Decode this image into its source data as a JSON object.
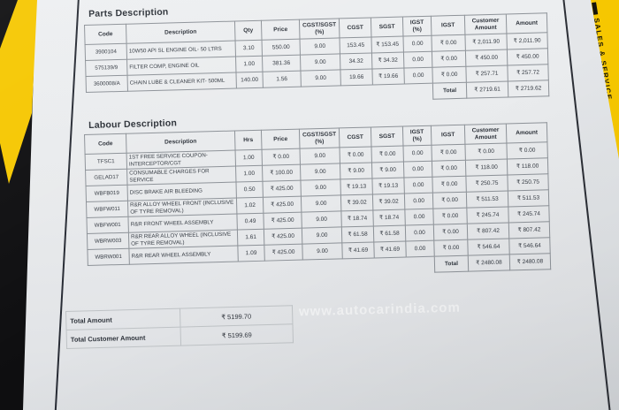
{
  "colors": {
    "strip_yellow": "#f6c700",
    "paper": "#e8eaec",
    "edge_line": "#2b2e35",
    "table_border": "#8d9298"
  },
  "side_strip": {
    "text": "SALES & SERVICE"
  },
  "overlay": {
    "watermark": "www.autocarindia.com"
  },
  "document": {
    "parts": {
      "title": "Parts Description",
      "columns": [
        "Code",
        "Description",
        "Qty",
        "Price",
        "CGST/SGST (%)",
        "CGST",
        "SGST",
        "IGST (%)",
        "IGST",
        "Customer Amount",
        "Amount"
      ],
      "rows": [
        [
          "3900104",
          "10W50 API SL ENGINE OIL- 50 LTRS",
          "3.10",
          "550.00",
          "9.00",
          "153.45",
          "₹ 153.45",
          "0.00",
          "₹ 0.00",
          "₹ 2,011.90",
          "₹ 2,011.90"
        ],
        [
          "575139/9",
          "FILTER COMP, ENGINE OIL",
          "1.00",
          "381.36",
          "9.00",
          "34.32",
          "₹ 34.32",
          "0.00",
          "₹ 0.00",
          "₹ 450.00",
          "₹ 450.00"
        ],
        [
          "3600008/A",
          "CHAIN LUBE & CLEANER KIT- 500ML",
          "140.00",
          "1.56",
          "9.00",
          "19.66",
          "₹ 19.66",
          "0.00",
          "₹ 0.00",
          "₹ 257.71",
          "₹ 257.72"
        ]
      ],
      "total_label": "Total",
      "total_customer_amount": "₹ 2719.61",
      "total_amount": "₹ 2719.62"
    },
    "labour": {
      "title": "Labour Description",
      "columns": [
        "Code",
        "Description",
        "Hrs",
        "Price",
        "CGST/SGST (%)",
        "CGST",
        "SGST",
        "IGST (%)",
        "IGST",
        "Customer Amount",
        "Amount"
      ],
      "rows": [
        [
          "TFSC1",
          "1ST FREE SERVICE COUPON-INTERCEPTOR/CGT",
          "1.00",
          "₹ 0.00",
          "9.00",
          "₹ 0.00",
          "₹ 0.00",
          "0.00",
          "₹ 0.00",
          "₹ 0.00",
          "₹ 0.00"
        ],
        [
          "GELAD17",
          "CONSUMABLE CHARGES FOR SERVICE",
          "1.00",
          "₹ 100.00",
          "9.00",
          "₹ 9.00",
          "₹ 9.00",
          "0.00",
          "₹ 0.00",
          "₹ 118.00",
          "₹ 118.00"
        ],
        [
          "WBFB019",
          "DISC BRAKE AIR BLEEDING",
          "0.50",
          "₹ 425.00",
          "9.00",
          "₹ 19.13",
          "₹ 19.13",
          "0.00",
          "₹ 0.00",
          "₹ 250.75",
          "₹ 250.75"
        ],
        [
          "WBFW011",
          "R&R ALLOY WHEEL FRONT (INCLUSIVE OF TYRE REMOVAL)",
          "1.02",
          "₹ 425.00",
          "9.00",
          "₹ 39.02",
          "₹ 39.02",
          "0.00",
          "₹ 0.00",
          "₹ 511.53",
          "₹ 511.53"
        ],
        [
          "WBFW001",
          "R&R FRONT WHEEL ASSEMBLY",
          "0.49",
          "₹ 425.00",
          "9.00",
          "₹ 18.74",
          "₹ 18.74",
          "0.00",
          "₹ 0.00",
          "₹ 245.74",
          "₹ 245.74"
        ],
        [
          "WBRW003",
          "R&R REAR ALLOY WHEEL (INCLUSIVE OF TYRE REMOVAL)",
          "1.61",
          "₹ 425.00",
          "9.00",
          "₹ 61.58",
          "₹ 61.58",
          "0.00",
          "₹ 0.00",
          "₹ 807.42",
          "₹ 807.42"
        ],
        [
          "WBRW001",
          "R&R REAR WHEEL ASSEMBLY",
          "1.09",
          "₹ 425.00",
          "9.00",
          "₹ 41.69",
          "₹ 41.69",
          "0.00",
          "₹ 0.00",
          "₹ 546.64",
          "₹ 546.64"
        ]
      ],
      "total_label": "Total",
      "total_customer_amount": "₹ 2480.08",
      "total_amount": "₹ 2480.08"
    },
    "summary": {
      "rows": [
        {
          "label": "Total Amount",
          "value": "₹ 5199.70"
        },
        {
          "label": "Total Customer Amount",
          "value": "₹ 5199.69"
        }
      ]
    }
  }
}
